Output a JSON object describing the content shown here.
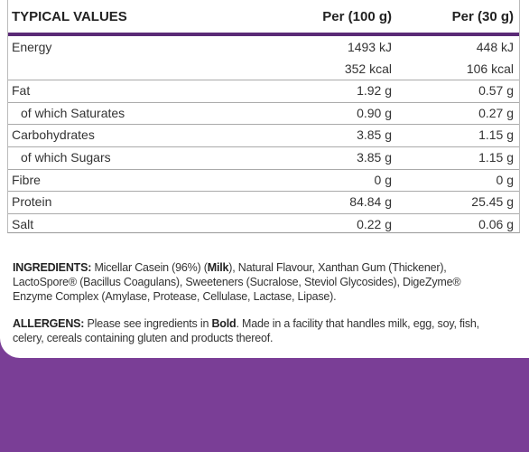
{
  "header": {
    "title": "TYPICAL VALUES",
    "col1": "Per (100 g)",
    "col2": "Per (30 g)"
  },
  "rows": [
    {
      "label": "Energy",
      "per100": [
        "1493 kJ",
        "352 kcal"
      ],
      "per30": [
        "448 kJ",
        "106 kcal"
      ]
    },
    {
      "label": "Fat",
      "per100": [
        "1.92 g"
      ],
      "per30": [
        "0.57 g"
      ]
    },
    {
      "label": "of which Saturates",
      "indent": true,
      "per100": [
        "0.90 g"
      ],
      "per30": [
        "0.27 g"
      ]
    },
    {
      "label": "Carbohydrates",
      "per100": [
        "3.85 g"
      ],
      "per30": [
        "1.15 g"
      ]
    },
    {
      "label": "of which Sugars",
      "indent": true,
      "per100": [
        "3.85 g"
      ],
      "per30": [
        "1.15 g"
      ]
    },
    {
      "label": "Fibre",
      "per100": [
        "0 g"
      ],
      "per30": [
        "0 g"
      ]
    },
    {
      "label": "Protein",
      "per100": [
        "84.84 g"
      ],
      "per30": [
        "25.45 g"
      ]
    },
    {
      "label": "Salt",
      "per100": [
        "0.22 g"
      ],
      "per30": [
        "0.06 g"
      ]
    }
  ],
  "ingredients": {
    "label": "INGREDIENTS:",
    "parts": [
      {
        "text": " Micellar Casein (96%) ("
      },
      {
        "text": "Milk",
        "bold": true
      },
      {
        "text": "), Natural Flavour, Xanthan Gum (Thickener), LactoSpore® (Bacillus Coagulans), Sweeteners (Sucralose, Steviol Glycosides), DigeZyme® Enzyme Complex (Amylase, Protease, Cellulase, Lactase, Lipase)."
      }
    ]
  },
  "allergens": {
    "label": "ALLERGENS:",
    "parts": [
      {
        "text": " Please see ingredients in "
      },
      {
        "text": "Bold",
        "bold": true
      },
      {
        "text": ". Made in a facility that handles milk, egg, soy, fish, celery, cereals containing gluten and products thereof."
      }
    ]
  }
}
